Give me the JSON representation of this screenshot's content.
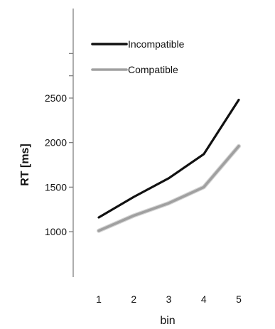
{
  "chart_data": {
    "type": "line",
    "title": "",
    "xlabel": "bin",
    "ylabel": "RT [ms]",
    "x": [
      1,
      2,
      3,
      4,
      5
    ],
    "xticks": [
      "1",
      "2",
      "3",
      "4",
      "5"
    ],
    "ylim": [
      500,
      3000
    ],
    "yticks": [
      1000,
      1500,
      2000,
      2500
    ],
    "yticks_labels": [
      "1000",
      "1500",
      "2000",
      "2500"
    ],
    "grid": false,
    "legend_position": "top-left",
    "series": [
      {
        "name": "Incompatible",
        "values": [
          1160,
          1390,
          1600,
          1870,
          2480
        ],
        "color": "#111111"
      },
      {
        "name": "Compatible",
        "values": [
          1010,
          1180,
          1320,
          1500,
          1960
        ],
        "color": "#a0a0a0"
      }
    ]
  }
}
